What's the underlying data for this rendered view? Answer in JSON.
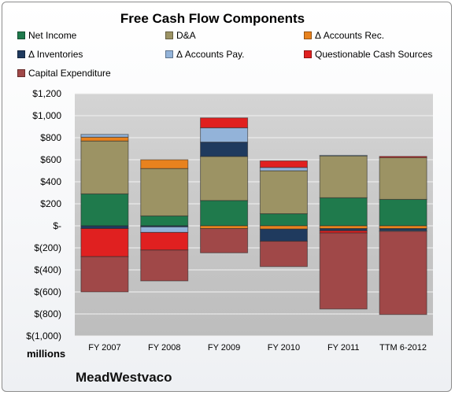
{
  "chart_data": {
    "type": "bar",
    "stacked": true,
    "title": "Free Cash Flow Components",
    "categories": [
      "FY 2007",
      "FY 2008",
      "FY 2009",
      "FY 2010",
      "FY 2011",
      "TTM 6-2012"
    ],
    "ylim": [
      -1000,
      1200
    ],
    "yticks": [
      1200,
      1000,
      800,
      600,
      400,
      200,
      0,
      -200,
      -400,
      -600,
      -800,
      -1000
    ],
    "ytick_labels": [
      "$1,200",
      "$1,000",
      "$800",
      "$600",
      "$400",
      "$200",
      "$-",
      "$(200)",
      "$(400)",
      "$(600)",
      "$(800)",
      "$(1,000)"
    ],
    "unit_label": "millions",
    "grid": true,
    "legend_position": "top",
    "series": [
      {
        "name": "Net Income",
        "color": "#1f7a4c",
        "values": [
          290,
          90,
          230,
          110,
          255,
          240
        ]
      },
      {
        "name": "D&A",
        "color": "#9c9364",
        "values": [
          480,
          430,
          400,
          390,
          380,
          380
        ]
      },
      {
        "name": "Δ Accounts Rec.",
        "color": "#e8821e",
        "values": [
          35,
          80,
          -25,
          -30,
          -25,
          -25
        ]
      },
      {
        "name": "Δ Inventories",
        "color": "#1f3a5e",
        "values": [
          -25,
          -10,
          130,
          -110,
          -20,
          -20
        ]
      },
      {
        "name": "Δ Accounts Pay.",
        "color": "#93b3d9",
        "values": [
          25,
          -50,
          130,
          30,
          5,
          -5
        ]
      },
      {
        "name": "Questionable Cash Sources",
        "color": "#e02020",
        "values": [
          -255,
          -160,
          90,
          60,
          -20,
          10
        ]
      },
      {
        "name": "Capital Expenditure",
        "color": "#a04848",
        "values": [
          -320,
          -280,
          -220,
          -230,
          -690,
          -755
        ]
      }
    ]
  },
  "company_name": "MeadWestvaco"
}
